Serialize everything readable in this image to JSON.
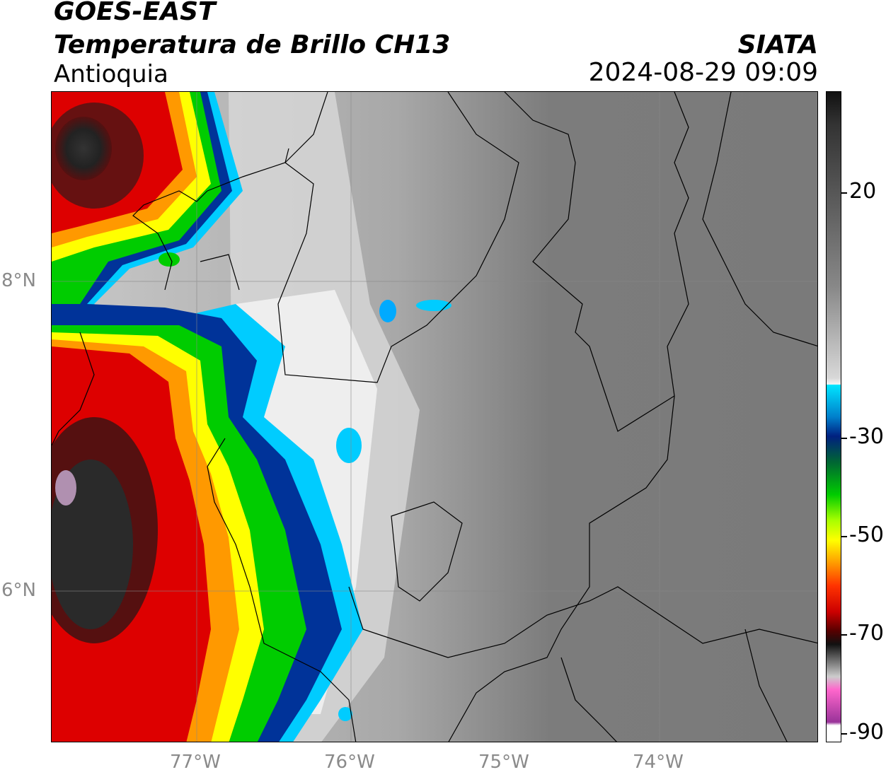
{
  "header": {
    "satellite": "GOES-EAST",
    "product": "Temperatura de Brillo CH13",
    "region": "Antioquia",
    "org": "SIATA",
    "datetime": "2024-08-29 09:09"
  },
  "axes": {
    "lat_labels": [
      "8°N",
      "6°N"
    ],
    "lon_labels": [
      "77°W",
      "76°W",
      "75°W",
      "74°W"
    ]
  },
  "colorbar": {
    "ticks": [
      "20",
      "-30",
      "-50",
      "-70",
      "-90"
    ],
    "colors": {
      "warm_top": "#111111",
      "cold_gray": "#f0f0f0",
      "cyan": "#00ccff",
      "blue": "#003399",
      "green": "#00cc00",
      "yellow": "#ffff00",
      "orange": "#ff9900",
      "red": "#dd0000",
      "darkred": "#550000",
      "pink": "#ff66cc",
      "purple": "#993399"
    }
  }
}
